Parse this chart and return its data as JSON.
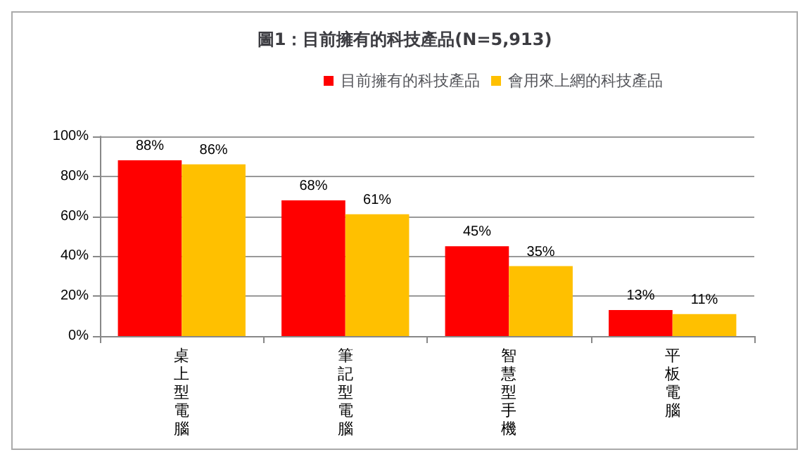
{
  "chart_data": {
    "type": "bar",
    "title": "圖1：目前擁有的科技產品(N=5,913)",
    "categories": [
      "桌上型電腦",
      "筆記型電腦",
      "智慧型手機",
      "平板電腦"
    ],
    "series": [
      {
        "name": "目前擁有的科技產品",
        "color": "#ff0000",
        "values": [
          88,
          68,
          45,
          13
        ],
        "value_labels": [
          "88%",
          "68%",
          "45%",
          "13%"
        ]
      },
      {
        "name": "會用來上網的科技產品",
        "color": "#ffc000",
        "values": [
          86,
          61,
          35,
          11
        ],
        "value_labels": [
          "86%",
          "61%",
          "35%",
          "11%"
        ]
      }
    ],
    "ylim": [
      0,
      100
    ],
    "yticks": [
      {
        "value": 0,
        "label": "0%"
      },
      {
        "value": 20,
        "label": "20%"
      },
      {
        "value": 40,
        "label": "40%"
      },
      {
        "value": 60,
        "label": "60%"
      },
      {
        "value": 80,
        "label": "80%"
      },
      {
        "value": 100,
        "label": "100%"
      }
    ],
    "grid": "y",
    "legend": "top right"
  }
}
